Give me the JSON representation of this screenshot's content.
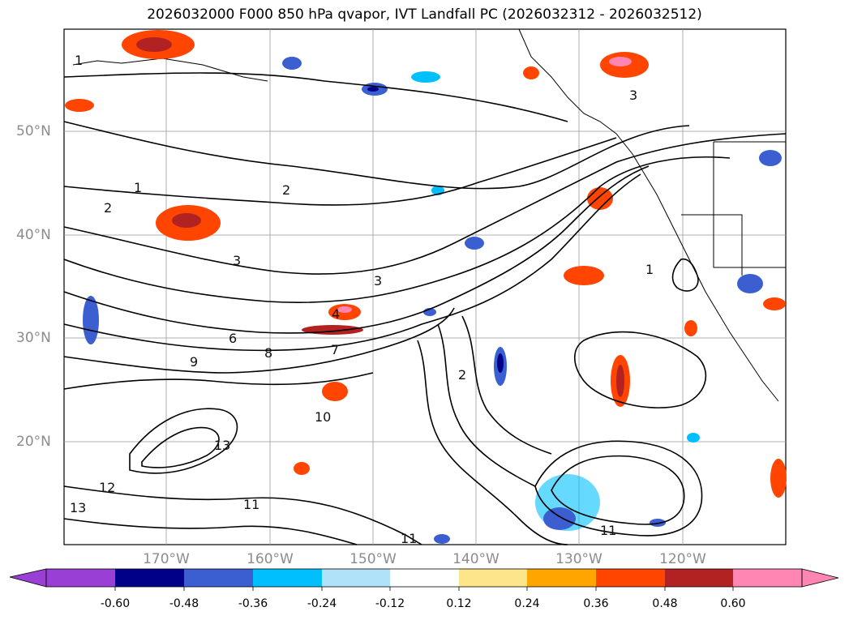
{
  "title": "2026032000 F000 850 hPa qvapor, IVT Landfall PC (2026032312 - 2026032512)",
  "map": {
    "lat_labels": [
      "50°N",
      "40°N",
      "30°N",
      "20°N"
    ],
    "lon_labels": [
      "170°W",
      "160°W",
      "150°W",
      "140°W",
      "130°W",
      "120°W"
    ],
    "contour_labels": [
      "1",
      "2",
      "3",
      "3",
      "4",
      "6",
      "7",
      "8",
      "9",
      "10",
      "11",
      "11",
      "11",
      "12",
      "13",
      "13",
      "2",
      "3",
      "1",
      "1",
      "2"
    ]
  },
  "colorbar": {
    "ticks": [
      "-0.60",
      "-0.48",
      "-0.36",
      "-0.24",
      "-0.12",
      "0.12",
      "0.24",
      "0.36",
      "0.48",
      "0.60"
    ],
    "colors": [
      "#9a3fd6",
      "#000089",
      "#3b5fd1",
      "#00bfff",
      "#b0e2fa",
      "#ffffff",
      "#fde68a",
      "#ffa500",
      "#ff4500",
      "#b22222",
      "#ff85b3",
      "#ff85b3"
    ]
  }
}
